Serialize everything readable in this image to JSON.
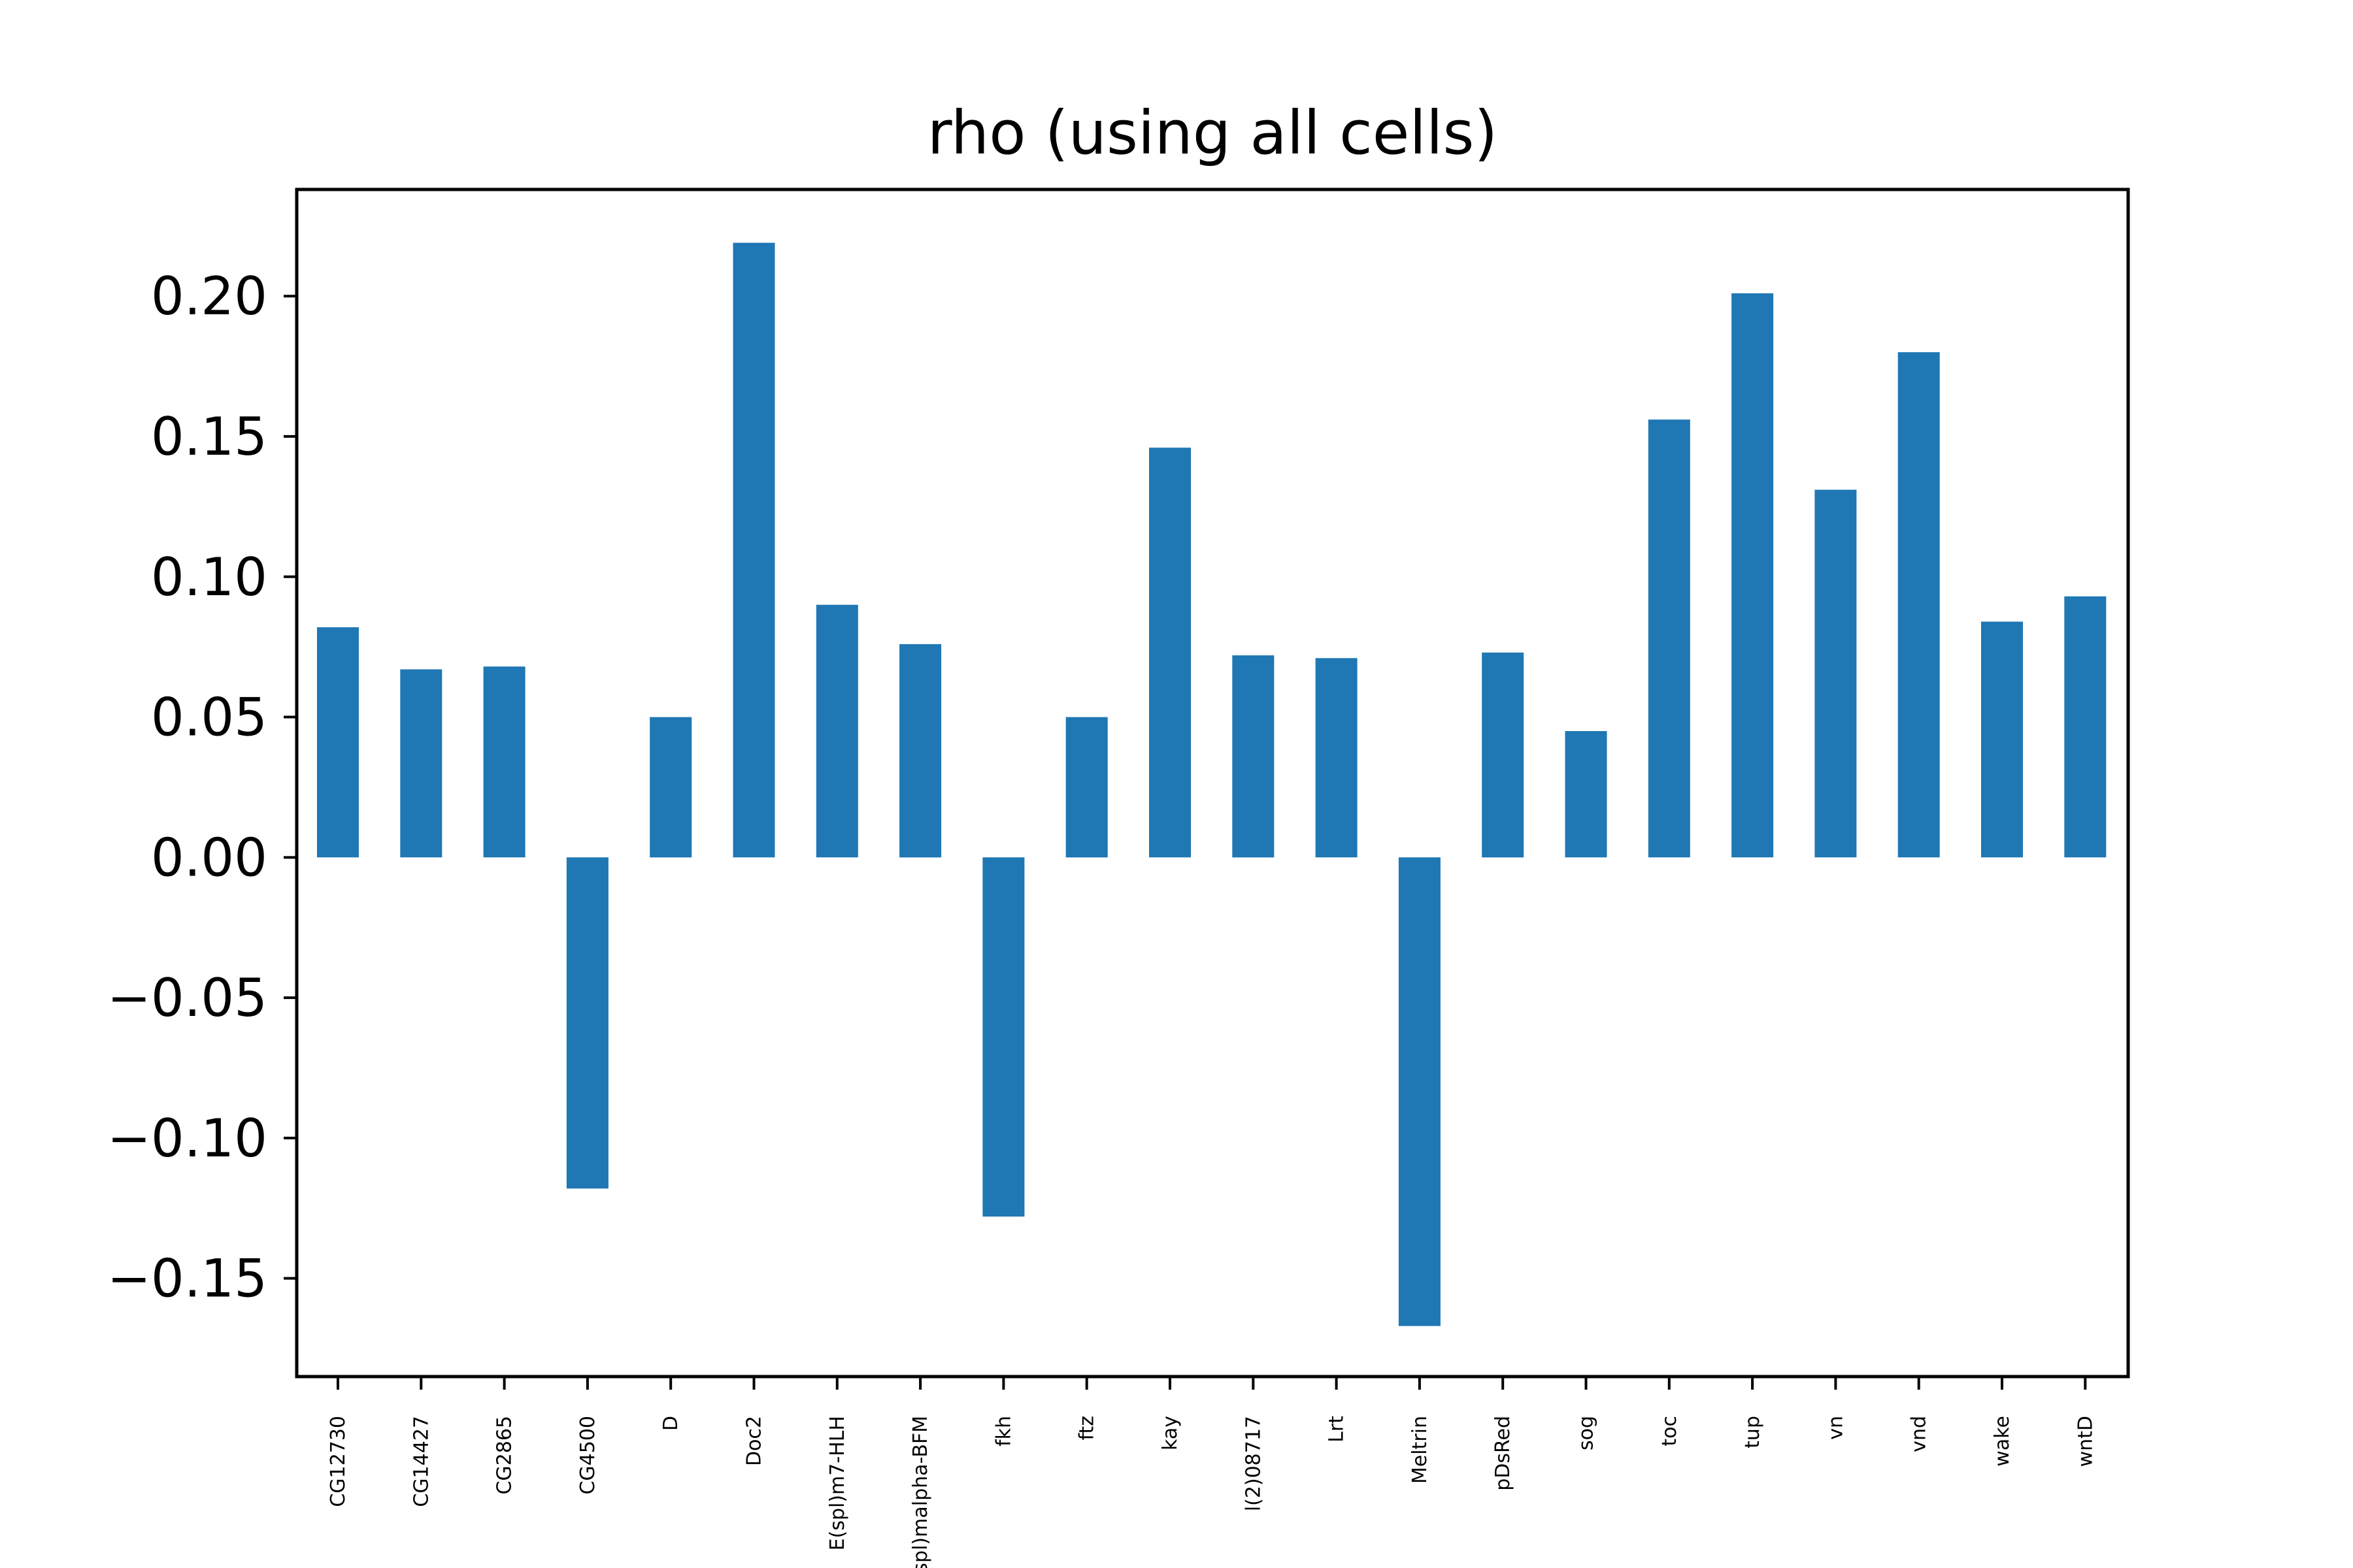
{
  "chart_data": {
    "type": "bar",
    "title": "rho (using all cells)",
    "xlabel": "",
    "ylabel": "",
    "categories": [
      "CG12730",
      "CG14427",
      "CG2865",
      "CG4500",
      "D",
      "Doc2",
      "E(spl)m7-HLH",
      "E(spl)malpha-BFM",
      "fkh",
      "ftz",
      "kay",
      "l(2)08717",
      "Lrt",
      "Meltrin",
      "pDsRed",
      "sog",
      "toc",
      "tup",
      "vn",
      "vnd",
      "wake",
      "wntD"
    ],
    "values": [
      0.082,
      0.067,
      0.068,
      -0.118,
      0.05,
      0.219,
      0.09,
      0.076,
      -0.128,
      0.05,
      0.146,
      0.072,
      0.071,
      -0.167,
      0.073,
      0.045,
      0.156,
      0.201,
      0.131,
      0.18,
      0.084,
      0.093
    ],
    "ylim": [
      -0.185,
      0.238
    ],
    "yticks": [
      -0.15,
      -0.1,
      -0.05,
      0.0,
      0.05,
      0.1,
      0.15,
      0.2
    ],
    "ytick_labels": [
      "−0.15",
      "−0.10",
      "−0.05",
      "0.00",
      "0.05",
      "0.10",
      "0.15",
      "0.20"
    ],
    "grid": false,
    "legend": "none",
    "bar_color": "#1f77b4"
  }
}
